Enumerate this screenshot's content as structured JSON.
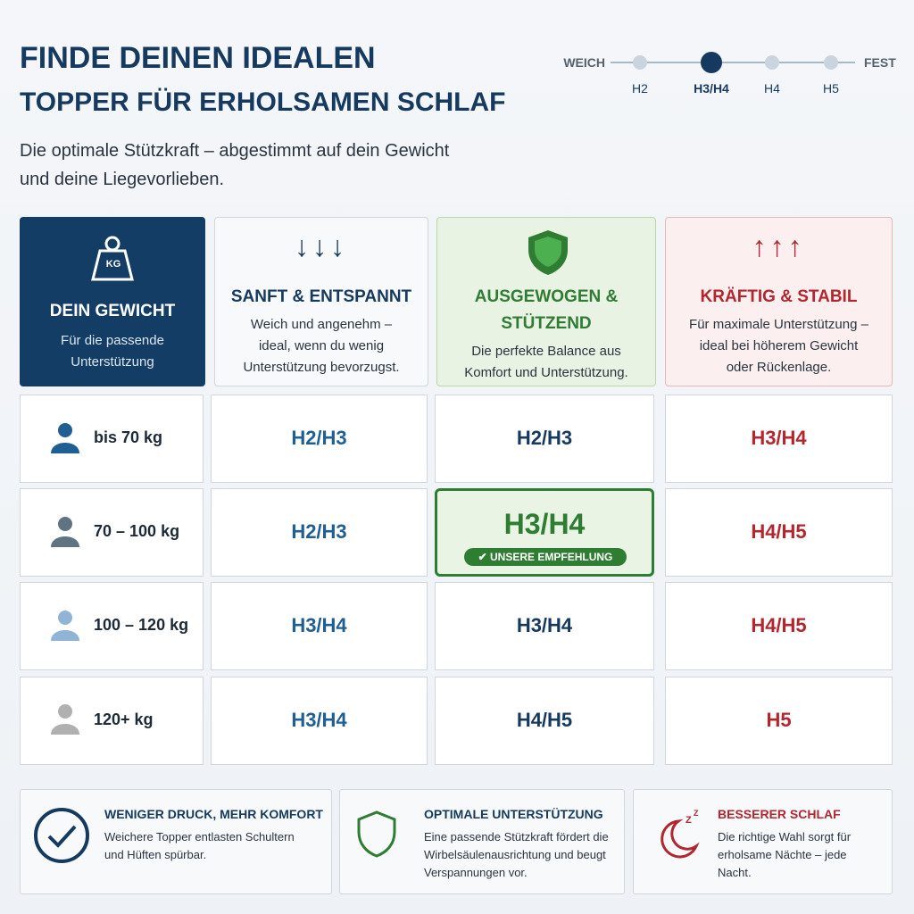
{
  "header": {
    "title": [
      "FINDE DEINEN IDEALEN",
      "TOPPER FÜR ERHOLSAMEN SCHLAF"
    ],
    "subtitle": [
      "Die optimale Stützkraft – abgestimmt auf dein Gewicht",
      "und deine Liegevorlieben."
    ]
  },
  "scale": {
    "start": "WEICH",
    "end": "FEST",
    "steps": [
      "H2",
      "H3/H4",
      "H4",
      "H5"
    ],
    "active_step": 1
  },
  "table": {
    "weight_header": {
      "icon": "KG",
      "title": "DEIN GEWICHT",
      "description": [
        "Für die passende",
        "Unterstützung"
      ]
    },
    "columns": [
      {
        "arrows": "↓↓↓",
        "title": [
          "SANFT & ENTSPANNT"
        ],
        "description": [
          "Weich und angenehm –",
          "ideal, wenn du wenig",
          "Unterstützung bevorzugst."
        ]
      },
      {
        "title": [
          "AUSGEWOGEN &",
          "STÜTZEND"
        ],
        "description": [
          "Die perfekte Balance aus",
          "Komfort und Unterstützung."
        ]
      },
      {
        "arrows": "↑↑↑",
        "title": [
          "KRÄFTIG & STABIL"
        ],
        "description": [
          "Für maximale Unterstützung –",
          "ideal bei höherem Gewicht",
          "oder Rückenlage."
        ]
      }
    ],
    "rows": [
      {
        "weight": "bis 70 kg",
        "values": [
          "H2/H3",
          "H2/H3",
          "H3/H4"
        ]
      },
      {
        "weight": "70 – 100 kg",
        "values": [
          "H2/H3",
          "H3/H4",
          "H4/H5"
        ]
      },
      {
        "weight": "100 – 120 kg",
        "values": [
          "H3/H4",
          "H3/H4",
          "H4/H5"
        ]
      },
      {
        "weight": "120+ kg",
        "values": [
          "H3/H4",
          "H4/H5",
          "H5"
        ]
      }
    ],
    "recommendation": "✔ UNSERE EMPFEHLUNG"
  },
  "benefits": [
    {
      "title": "WENIGER DRUCK, MEHR KOMFORT",
      "text": [
        "Weichere Topper entlasten Schultern",
        "und Hüften spürbar."
      ]
    },
    {
      "title": "OPTIMALE UNTERSTÜTZUNG",
      "text": [
        "Eine passende Stützkraft fördert die",
        "Wirbelsäulenausrichtung und beugt",
        "Verspannungen vor."
      ]
    },
    {
      "title": "BESSERER SCHLAF",
      "text": [
        "Die richtige Wahl sorgt für",
        "erholsame Nächte – jede",
        "Nacht."
      ]
    }
  ]
}
